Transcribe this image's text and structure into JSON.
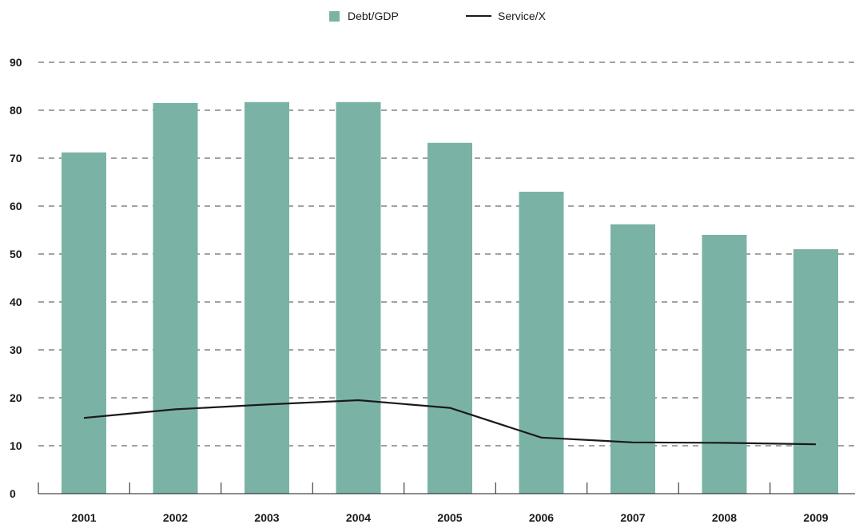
{
  "chart_data": {
    "type": "bar",
    "categories": [
      "2001",
      "2002",
      "2003",
      "2004",
      "2005",
      "2006",
      "2007",
      "2008",
      "2009"
    ],
    "series": [
      {
        "name": "Debt/GDP",
        "type": "bar",
        "color": "#7ab3a6",
        "values": [
          71.2,
          81.5,
          81.7,
          81.7,
          73.2,
          63.0,
          56.2,
          54.0,
          51.0
        ]
      },
      {
        "name": "Service/X",
        "type": "line",
        "color": "#1a1a1a",
        "values": [
          15.8,
          17.6,
          18.6,
          19.5,
          17.9,
          11.7,
          10.7,
          10.6,
          10.3
        ]
      }
    ],
    "y_ticks": [
      "0",
      "10",
      "20",
      "30",
      "40",
      "50",
      "60",
      "70",
      "80",
      "90"
    ],
    "ylim": [
      0,
      90
    ],
    "grid": "horizontal dashed",
    "legend_position": "top-center"
  }
}
